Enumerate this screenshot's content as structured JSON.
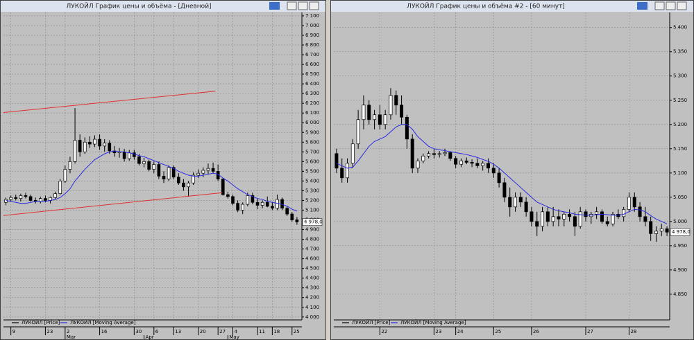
{
  "chart_data": [
    {
      "type": "candlestick",
      "title": "ЛУКОЙЛ График цены и объёма - [Дневной]",
      "series": [
        {
          "name": "ЛУКОЙЛ [Price]",
          "color": "#000000",
          "up_color": "#ffffff",
          "down_color": "#000000",
          "open": [
            5180,
            5210,
            5230,
            5220,
            5250,
            5240,
            5200,
            5190,
            5220,
            5200,
            5230,
            5270,
            5400,
            5520,
            5600,
            5820,
            5700,
            5800,
            5780,
            5830,
            5760,
            5790,
            5710,
            5690,
            5700,
            5630,
            5690,
            5650,
            5580,
            5600,
            5520,
            5570,
            5450,
            5420,
            5540,
            5440,
            5380,
            5340,
            5380,
            5460,
            5480,
            5510,
            5530,
            5500,
            5420,
            5260,
            5240,
            5170,
            5100,
            5160,
            5250,
            5180,
            5150,
            5180,
            5140,
            5120,
            5210,
            5120,
            5060,
            5000
          ],
          "high": [
            5230,
            5250,
            5260,
            5270,
            5280,
            5260,
            5230,
            5240,
            5250,
            5240,
            5290,
            5420,
            5560,
            5650,
            6150,
            5880,
            5850,
            5860,
            5870,
            5880,
            5830,
            5820,
            5760,
            5740,
            5730,
            5720,
            5720,
            5680,
            5640,
            5620,
            5600,
            5600,
            5500,
            5560,
            5560,
            5480,
            5420,
            5400,
            5490,
            5520,
            5540,
            5580,
            5590,
            5570,
            5430,
            5290,
            5260,
            5200,
            5180,
            5280,
            5280,
            5220,
            5200,
            5240,
            5180,
            5260,
            5230,
            5140,
            5080,
            5030
          ],
          "low": [
            5150,
            5190,
            5200,
            5190,
            5220,
            5190,
            5170,
            5170,
            5180,
            5170,
            5210,
            5260,
            5380,
            5480,
            5580,
            5650,
            5680,
            5740,
            5750,
            5720,
            5700,
            5680,
            5650,
            5640,
            5600,
            5610,
            5620,
            5560,
            5540,
            5500,
            5480,
            5420,
            5380,
            5400,
            5420,
            5360,
            5300,
            5240,
            5360,
            5430,
            5440,
            5470,
            5480,
            5400,
            5250,
            5220,
            5150,
            5080,
            5060,
            5140,
            5160,
            5110,
            5120,
            5130,
            5100,
            5100,
            5100,
            5040,
            4980,
            4950
          ],
          "close": [
            5210,
            5230,
            5220,
            5250,
            5240,
            5200,
            5190,
            5220,
            5200,
            5230,
            5270,
            5400,
            5520,
            5600,
            5820,
            5700,
            5800,
            5780,
            5830,
            5760,
            5790,
            5710,
            5690,
            5700,
            5630,
            5690,
            5650,
            5580,
            5600,
            5520,
            5570,
            5450,
            5420,
            5540,
            5440,
            5380,
            5340,
            5380,
            5460,
            5480,
            5510,
            5530,
            5500,
            5420,
            5260,
            5240,
            5170,
            5100,
            5160,
            5250,
            5180,
            5150,
            5180,
            5140,
            5120,
            5210,
            5120,
            5060,
            5000,
            4978
          ]
        },
        {
          "name": "ЛУКОЙЛ [Moving Average]",
          "color": "#2a2ae0",
          "values": [
            5200,
            5190,
            5180,
            5170,
            5170,
            5180,
            5190,
            5190,
            5190,
            5200,
            5210,
            5230,
            5270,
            5320,
            5400,
            5460,
            5520,
            5570,
            5620,
            5650,
            5680,
            5700,
            5710,
            5700,
            5700,
            5690,
            5680,
            5660,
            5650,
            5630,
            5610,
            5590,
            5570,
            5550,
            5530,
            5500,
            5480,
            5460,
            5450,
            5450,
            5460,
            5470,
            5480,
            5470,
            5430,
            5400,
            5360,
            5320,
            5290,
            5260,
            5240,
            5220,
            5210,
            5190,
            5180,
            5170,
            5160,
            5140,
            5110,
            5090
          ]
        }
      ],
      "xlim": [
        -0.5,
        60
      ],
      "xticks": [
        {
          "value": 1,
          "label": "9"
        },
        {
          "value": 8,
          "label": "23"
        },
        {
          "value": 12,
          "label": "2"
        },
        {
          "value": 19,
          "label": "16"
        },
        {
          "value": 26,
          "label": "30"
        },
        {
          "value": 30,
          "label": "6"
        },
        {
          "value": 34,
          "label": "13"
        },
        {
          "value": 39,
          "label": "20"
        },
        {
          "value": 43,
          "label": "27"
        },
        {
          "value": 46,
          "label": "4"
        },
        {
          "value": 51,
          "label": "11"
        },
        {
          "value": 54,
          "label": "18"
        },
        {
          "value": 58,
          "label": "25"
        }
      ],
      "month_ticks": [
        {
          "value": 12,
          "label": "Mar"
        },
        {
          "value": 28,
          "label": "Apr"
        },
        {
          "value": 45,
          "label": "May"
        }
      ],
      "ylim": [
        3970,
        7135
      ],
      "yticks": [
        {
          "value": 4000,
          "label": "4 000"
        },
        {
          "value": 4100,
          "label": "4 100"
        },
        {
          "value": 4200,
          "label": "4 200"
        },
        {
          "value": 4300,
          "label": "4 300"
        },
        {
          "value": 4400,
          "label": "4 400"
        },
        {
          "value": 4500,
          "label": "4 500"
        },
        {
          "value": 4600,
          "label": "4 600"
        },
        {
          "value": 4700,
          "label": "4 700"
        },
        {
          "value": 4800,
          "label": "4 800"
        },
        {
          "value": 4900,
          "label": "4 900"
        },
        {
          "value": 5000,
          "label": "5 000"
        },
        {
          "value": 5100,
          "label": "5 100"
        },
        {
          "value": 5200,
          "label": "5 200"
        },
        {
          "value": 5300,
          "label": "5 300"
        },
        {
          "value": 5400,
          "label": "5 400"
        },
        {
          "value": 5500,
          "label": "5 500"
        },
        {
          "value": 5600,
          "label": "5 600"
        },
        {
          "value": 5700,
          "label": "5 700"
        },
        {
          "value": 5800,
          "label": "5 800"
        },
        {
          "value": 5900,
          "label": "5 900"
        },
        {
          "value": 6000,
          "label": "6 000"
        },
        {
          "value": 6100,
          "label": "6 100"
        },
        {
          "value": 6200,
          "label": "6 200"
        },
        {
          "value": 6300,
          "label": "6 300"
        },
        {
          "value": 6400,
          "label": "6 400"
        },
        {
          "value": 6500,
          "label": "6 500"
        },
        {
          "value": 6600,
          "label": "6 600"
        },
        {
          "value": 6700,
          "label": "6 700"
        },
        {
          "value": 6800,
          "label": "6 800"
        },
        {
          "value": 6900,
          "label": "6 900"
        },
        {
          "value": 7000,
          "label": "7 000"
        },
        {
          "value": 7100,
          "label": "7 100"
        }
      ],
      "grid": true,
      "trend_lines": [
        {
          "color": "#e03030",
          "x": [
            -0.5,
            42.5
          ],
          "y": [
            6105,
            6325
          ]
        },
        {
          "color": "#e03030",
          "x": [
            -0.5,
            43.9
          ],
          "y": [
            5045,
            5280
          ]
        }
      ],
      "last_price": {
        "value": 4978,
        "label": "4 978,0"
      }
    },
    {
      "type": "candlestick",
      "title": "ЛУКОЙЛ График цены и объёма #2 - [60 минут]",
      "series": [
        {
          "name": "ЛУКОЙЛ [Price]",
          "color": "#000000",
          "up_color": "#ffffff",
          "down_color": "#000000",
          "open": [
            5140,
            5110,
            5090,
            5120,
            5160,
            5210,
            5240,
            5210,
            5220,
            5200,
            5220,
            5260,
            5240,
            5215,
            5170,
            5110,
            5125,
            5135,
            5140,
            5138,
            5140,
            5142,
            5130,
            5118,
            5125,
            5122,
            5120,
            5115,
            5120,
            5110,
            5100,
            5080,
            5050,
            5030,
            5050,
            5040,
            5020,
            5000,
            4990,
            5020,
            5000,
            5010,
            5005,
            5015,
            5010,
            4990,
            5020,
            5010,
            5015,
            5020,
            5000,
            4995,
            5015,
            5010,
            5025,
            5050,
            5030,
            5010,
            5000,
            4975,
            4980,
            4985
          ],
          "high": [
            5150,
            5130,
            5130,
            5170,
            5230,
            5260,
            5250,
            5230,
            5240,
            5230,
            5275,
            5270,
            5260,
            5220,
            5180,
            5130,
            5140,
            5145,
            5150,
            5145,
            5150,
            5145,
            5135,
            5130,
            5132,
            5128,
            5130,
            5125,
            5130,
            5120,
            5110,
            5090,
            5070,
            5060,
            5060,
            5050,
            5030,
            5020,
            5030,
            5030,
            5030,
            5025,
            5020,
            5025,
            5020,
            5030,
            5025,
            5020,
            5030,
            5025,
            5010,
            5020,
            5025,
            5030,
            5060,
            5060,
            5040,
            5030,
            5010,
            4990,
            4995,
            4990
          ],
          "low": [
            5100,
            5080,
            5080,
            5110,
            5150,
            5190,
            5200,
            5190,
            5190,
            5190,
            5210,
            5220,
            5200,
            5150,
            5100,
            5100,
            5120,
            5130,
            5130,
            5132,
            5135,
            5125,
            5110,
            5112,
            5118,
            5112,
            5110,
            5105,
            5100,
            5090,
            5070,
            5040,
            5010,
            5020,
            5030,
            5010,
            4990,
            4970,
            4980,
            4990,
            4990,
            4990,
            4990,
            5000,
            4970,
            4985,
            5000,
            4995,
            5005,
            4995,
            4990,
            4990,
            5005,
            5000,
            5020,
            5020,
            5000,
            4990,
            4960,
            4958,
            4970,
            4970
          ],
          "close": [
            5110,
            5090,
            5120,
            5160,
            5210,
            5240,
            5210,
            5220,
            5200,
            5220,
            5260,
            5240,
            5215,
            5170,
            5110,
            5125,
            5135,
            5140,
            5138,
            5140,
            5142,
            5130,
            5118,
            5125,
            5122,
            5120,
            5115,
            5120,
            5110,
            5100,
            5080,
            5050,
            5030,
            5050,
            5040,
            5020,
            5000,
            4990,
            5020,
            5000,
            5010,
            5005,
            5015,
            5010,
            4990,
            5020,
            5010,
            5015,
            5020,
            5000,
            4995,
            5015,
            5010,
            5025,
            5050,
            5030,
            5010,
            5000,
            4975,
            4980,
            4985,
            4978
          ]
        },
        {
          "name": "ЛУКОЙЛ [Moving Average]",
          "color": "#2a2ae0",
          "values": [
            5120,
            5115,
            5110,
            5112,
            5125,
            5140,
            5155,
            5165,
            5170,
            5175,
            5185,
            5195,
            5200,
            5200,
            5190,
            5175,
            5165,
            5155,
            5150,
            5148,
            5146,
            5144,
            5142,
            5140,
            5138,
            5135,
            5132,
            5128,
            5124,
            5118,
            5110,
            5100,
            5090,
            5080,
            5070,
            5060,
            5050,
            5040,
            5035,
            5030,
            5025,
            5022,
            5020,
            5018,
            5015,
            5014,
            5013,
            5013,
            5014,
            5015,
            5014,
            5013,
            5013,
            5015,
            5020,
            5025,
            5024,
            5020,
            5012,
            5005,
            5000,
            4995
          ]
        }
      ],
      "xlim": [
        -0.5,
        61.5
      ],
      "xticks": [
        {
          "value": 8,
          "label": "22"
        },
        {
          "value": 18,
          "label": "23"
        },
        {
          "value": 22,
          "label": "24"
        },
        {
          "value": 29,
          "label": "25"
        },
        {
          "value": 36,
          "label": "26"
        },
        {
          "value": 46,
          "label": "27"
        },
        {
          "value": 54,
          "label": "28"
        }
      ],
      "ylim": [
        4797,
        5431
      ],
      "yticks": [
        {
          "value": 4850,
          "label": "4.850"
        },
        {
          "value": 4900,
          "label": "4.900"
        },
        {
          "value": 4950,
          "label": "4.950"
        },
        {
          "value": 5000,
          "label": "5.000"
        },
        {
          "value": 5050,
          "label": "5.050"
        },
        {
          "value": 5100,
          "label": "5.100"
        },
        {
          "value": 5150,
          "label": "5.150"
        },
        {
          "value": 5200,
          "label": "5.200"
        },
        {
          "value": 5250,
          "label": "5.250"
        },
        {
          "value": 5300,
          "label": "5.300"
        },
        {
          "value": 5350,
          "label": "5.350"
        },
        {
          "value": 5400,
          "label": "5.400"
        }
      ],
      "grid": true,
      "last_price": {
        "value": 4978,
        "label": "4 978,0"
      }
    }
  ]
}
